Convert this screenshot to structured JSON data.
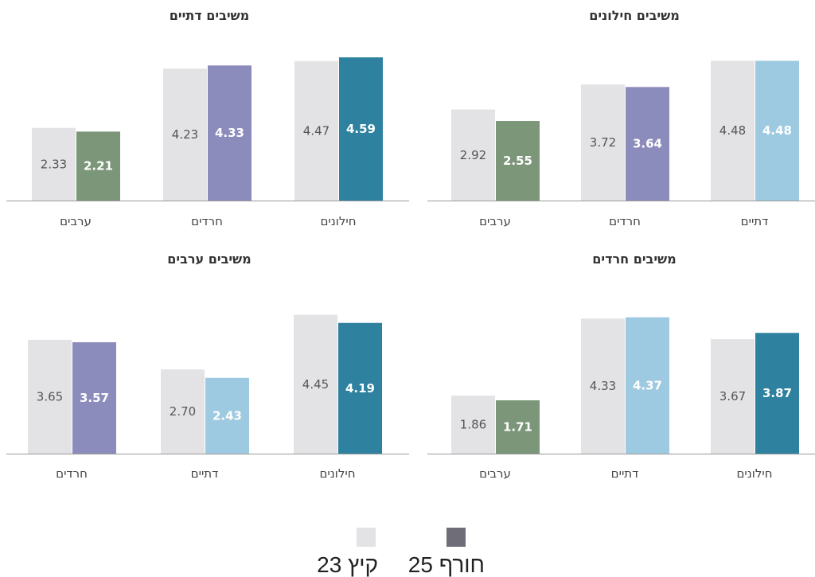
{
  "legend": {
    "items": [
      {
        "name": "קיץ 23",
        "color": "#e3e3e5"
      },
      {
        "name": "חורף 25",
        "color": "#6e6d78"
      }
    ]
  },
  "colors": {
    "summer": "#e3e3e5",
    "secular": "#2e819f",
    "haredi": "#8c8cbc",
    "arab": "#7c9679",
    "religious": "#9ecae1"
  },
  "chart_data": [
    {
      "type": "bar",
      "title": "משיבים חילונים",
      "categories": [
        "דתיים",
        "חרדים",
        "ערבים"
      ],
      "series": [
        {
          "name": "קיץ 23",
          "values": [
            4.48,
            3.72,
            2.92
          ]
        },
        {
          "name": "חורף 25",
          "values": [
            4.48,
            3.64,
            2.55
          ]
        }
      ],
      "winter_colors": [
        "#9ecae1",
        "#8c8cbc",
        "#7c9679"
      ]
    },
    {
      "type": "bar",
      "title": "משיבים דתיים",
      "categories": [
        "חילונים",
        "חרדים",
        "ערבים"
      ],
      "series": [
        {
          "name": "קיץ 23",
          "values": [
            4.47,
            4.23,
            2.33
          ]
        },
        {
          "name": "חורף 25",
          "values": [
            4.59,
            4.33,
            2.21
          ]
        }
      ],
      "winter_colors": [
        "#2e819f",
        "#8c8cbc",
        "#7c9679"
      ]
    },
    {
      "type": "bar",
      "title": "משיבים חרדים",
      "categories": [
        "חילונים",
        "דתיים",
        "ערבים"
      ],
      "series": [
        {
          "name": "קיץ 23",
          "values": [
            3.67,
            4.33,
            1.86
          ]
        },
        {
          "name": "חורף 25",
          "values": [
            3.87,
            4.37,
            1.71
          ]
        }
      ],
      "winter_colors": [
        "#2e819f",
        "#9ecae1",
        "#7c9679"
      ]
    },
    {
      "type": "bar",
      "title": "משיבים ערבים",
      "categories": [
        "חילונים",
        "דתיים",
        "חרדים"
      ],
      "series": [
        {
          "name": "קיץ 23",
          "values": [
            4.45,
            2.7,
            3.65
          ]
        },
        {
          "name": "חורף 25",
          "values": [
            4.19,
            2.43,
            3.57
          ]
        }
      ],
      "winter_colors": [
        "#2e819f",
        "#9ecae1",
        "#8c8cbc"
      ]
    }
  ]
}
